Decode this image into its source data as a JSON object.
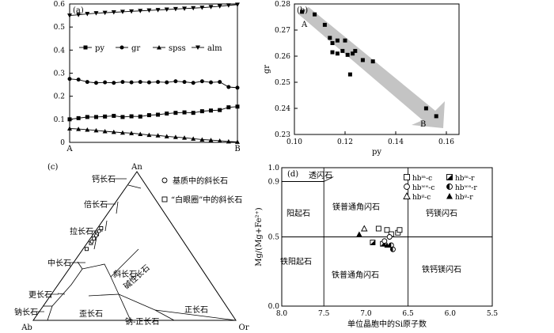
{
  "chart_data": [
    {
      "panel": "(a)",
      "type": "line",
      "x_labels": [
        "A",
        "B"
      ],
      "ylim": [
        0,
        0.6
      ],
      "yticks": [
        "0",
        "0.1",
        "0.2",
        "0.3",
        "0.4",
        "0.5",
        "0.6"
      ],
      "legend": [
        "py",
        "gr",
        "spss",
        "alm"
      ],
      "series": [
        {
          "name": "py",
          "marker": "square",
          "values": [
            0.1,
            0.105,
            0.11,
            0.11,
            0.112,
            0.115,
            0.11,
            0.113,
            0.112,
            0.118,
            0.12,
            0.125,
            0.128,
            0.13,
            0.128,
            0.135,
            0.138,
            0.14,
            0.152,
            0.155
          ]
        },
        {
          "name": "gr",
          "marker": "circle",
          "values": [
            0.275,
            0.272,
            0.262,
            0.258,
            0.26,
            0.258,
            0.262,
            0.26,
            0.262,
            0.26,
            0.262,
            0.26,
            0.265,
            0.262,
            0.258,
            0.265,
            0.26,
            0.262,
            0.24,
            0.237
          ]
        },
        {
          "name": "spss",
          "marker": "triangle-up",
          "values": [
            0.06,
            0.058,
            0.055,
            0.052,
            0.048,
            0.045,
            0.042,
            0.04,
            0.036,
            0.032,
            0.03,
            0.026,
            0.023,
            0.02,
            0.016,
            0.012,
            0.01,
            0.007,
            0.004,
            0.002
          ]
        },
        {
          "name": "alm",
          "marker": "triangle-down",
          "values": [
            0.55,
            0.553,
            0.557,
            0.56,
            0.562,
            0.564,
            0.566,
            0.568,
            0.57,
            0.572,
            0.574,
            0.576,
            0.578,
            0.58,
            0.582,
            0.584,
            0.587,
            0.59,
            0.594,
            0.597
          ]
        }
      ]
    },
    {
      "panel": "(b)",
      "type": "scatter",
      "xlabel": "py",
      "ylabel": "gr",
      "xlim": [
        0.1,
        0.165
      ],
      "ylim": [
        0.23,
        0.28
      ],
      "xticks": [
        "0.10",
        "0.12",
        "0.14",
        "0.16"
      ],
      "yticks": [
        "0.23",
        "0.24",
        "0.25",
        "0.26",
        "0.27",
        "0.28"
      ],
      "annotations": [
        "A",
        "B"
      ],
      "points": [
        {
          "x": 0.103,
          "y": 0.277
        },
        {
          "x": 0.108,
          "y": 0.276
        },
        {
          "x": 0.112,
          "y": 0.272
        },
        {
          "x": 0.114,
          "y": 0.267
        },
        {
          "x": 0.115,
          "y": 0.265
        },
        {
          "x": 0.117,
          "y": 0.266
        },
        {
          "x": 0.115,
          "y": 0.2615
        },
        {
          "x": 0.117,
          "y": 0.261
        },
        {
          "x": 0.119,
          "y": 0.262
        },
        {
          "x": 0.12,
          "y": 0.266
        },
        {
          "x": 0.121,
          "y": 0.2605
        },
        {
          "x": 0.123,
          "y": 0.261
        },
        {
          "x": 0.124,
          "y": 0.262
        },
        {
          "x": 0.122,
          "y": 0.253
        },
        {
          "x": 0.127,
          "y": 0.2585
        },
        {
          "x": 0.131,
          "y": 0.258
        },
        {
          "x": 0.152,
          "y": 0.24
        },
        {
          "x": 0.156,
          "y": 0.237
        }
      ]
    },
    {
      "panel": "(c)",
      "type": "ternary",
      "vertices": {
        "top": "An",
        "left": "Ab",
        "right": "Or"
      },
      "field_labels": [
        "钙长石",
        "倍长石",
        "拉长石",
        "中长石",
        "更长石",
        "钠长石",
        "斜长石",
        "碱性长石",
        "歪长石",
        "钠-正长石",
        "正长石"
      ],
      "legend": [
        {
          "marker": "circle",
          "label": "基质中的斜长石"
        },
        {
          "marker": "square",
          "label": "“白眼圈”中的斜长石"
        }
      ],
      "points": [
        {
          "marker": "square",
          "an": 0.62,
          "or": 0.03
        },
        {
          "marker": "square",
          "an": 0.58,
          "or": 0.03
        },
        {
          "marker": "square",
          "an": 0.55,
          "or": 0.03
        },
        {
          "marker": "square",
          "an": 0.52,
          "or": 0.04
        },
        {
          "marker": "square",
          "an": 0.48,
          "or": 0.03
        },
        {
          "marker": "circle",
          "an": 0.6,
          "or": 0.03
        },
        {
          "marker": "circle",
          "an": 0.57,
          "or": 0.04
        },
        {
          "marker": "circle",
          "an": 0.53,
          "or": 0.03
        }
      ]
    },
    {
      "panel": "(d)",
      "type": "scatter",
      "xlabel": "单位晶胞中的Si原子数",
      "ylabel": "Mg/(Mg+Fe²⁺)",
      "xlim": [
        8.0,
        5.5
      ],
      "ylim": [
        0,
        1.0
      ],
      "xticks": [
        "8.0",
        "7.5",
        "7.0",
        "6.5",
        "6.0",
        "5.5"
      ],
      "yticks": [
        "0.0",
        "0.5",
        "0.9",
        "1.0"
      ],
      "field_labels": [
        "透闪石",
        "阳起石",
        "镁普通角闪石",
        "钙镁闪石",
        "铁阳起石",
        "铁普通角闪石",
        "铁钙镁闪石"
      ],
      "legend": [
        "hbᵐ-c",
        "hbᵐ-r",
        "hbʷᵉ-c",
        "hbʷᵉ-r",
        "hbᵍ-c",
        "hbᵍ-r"
      ],
      "points": [
        {
          "marker": "square-open",
          "x": 6.75,
          "y": 0.55
        },
        {
          "marker": "square-open",
          "x": 6.7,
          "y": 0.52
        },
        {
          "marker": "square-open",
          "x": 6.62,
          "y": 0.53
        },
        {
          "marker": "square-open",
          "x": 6.85,
          "y": 0.56
        },
        {
          "marker": "square-open",
          "x": 6.6,
          "y": 0.55
        },
        {
          "marker": "square-half",
          "x": 6.92,
          "y": 0.46
        },
        {
          "marker": "square-half",
          "x": 6.8,
          "y": 0.45
        },
        {
          "marker": "circle-open",
          "x": 6.72,
          "y": 0.5
        },
        {
          "marker": "circle-open",
          "x": 6.78,
          "y": 0.47
        },
        {
          "marker": "circle-half",
          "x": 6.7,
          "y": 0.44
        },
        {
          "marker": "circle-half",
          "x": 6.68,
          "y": 0.41
        },
        {
          "marker": "triangle-open",
          "x": 7.02,
          "y": 0.56
        },
        {
          "marker": "triangle-filled",
          "x": 7.08,
          "y": 0.52
        },
        {
          "marker": "triangle-filled",
          "x": 6.75,
          "y": 0.44
        }
      ]
    }
  ]
}
